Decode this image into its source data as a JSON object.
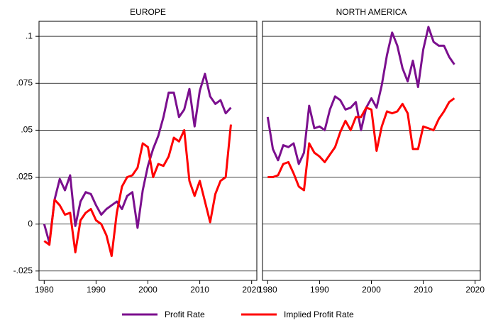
{
  "chart_data": [
    {
      "type": "line",
      "title": "EUROPE",
      "x": [
        1980,
        1981,
        1982,
        1983,
        1984,
        1985,
        1986,
        1987,
        1988,
        1989,
        1990,
        1991,
        1992,
        1993,
        1994,
        1995,
        1996,
        1997,
        1998,
        1999,
        2000,
        2001,
        2002,
        2003,
        2004,
        2005,
        2006,
        2007,
        2008,
        2009,
        2010,
        2011,
        2012,
        2013,
        2014,
        2015,
        2016
      ],
      "series": [
        {
          "name": "Profit Rate",
          "color": "#7b0f8e",
          "values": [
            0,
            -0.01,
            0.013,
            0.024,
            0.018,
            0.026,
            -0.001,
            0.012,
            0.017,
            0.016,
            0.01,
            0.005,
            0.008,
            0.01,
            0.012,
            0.008,
            0.015,
            0.017,
            -0.002,
            0.018,
            0.031,
            0.04,
            0.047,
            0.057,
            0.07,
            0.07,
            0.057,
            0.061,
            0.072,
            0.052,
            0.071,
            0.08,
            0.068,
            0.064,
            0.066,
            0.059,
            0.062
          ]
        },
        {
          "name": "Implied Profit Rate",
          "color": "#ff0000",
          "values": [
            -0.009,
            -0.011,
            0.013,
            0.01,
            0.005,
            0.006,
            -0.015,
            0.002,
            0.006,
            0.008,
            0.002,
            0,
            -0.006,
            -0.017,
            0.006,
            0.02,
            0.025,
            0.026,
            0.03,
            0.043,
            0.041,
            0.025,
            0.032,
            0.031,
            0.036,
            0.046,
            0.044,
            0.05,
            0.023,
            0.015,
            0.023,
            0.012,
            0.001,
            0.016,
            0.023,
            0.025,
            0.053
          ]
        }
      ],
      "xlim": [
        1979,
        2021
      ],
      "xticks": [
        1980,
        1990,
        2000,
        2010,
        2020
      ],
      "ylim": [
        -0.03,
        0.108
      ],
      "yticks": [
        {
          "value": -0.025,
          "label": "-.025"
        },
        0,
        {
          "value": 0.025,
          "label": ".025"
        },
        {
          "value": 0.05,
          "label": ".05"
        },
        {
          "value": 0.075,
          "label": ".075"
        },
        {
          "value": 0.1,
          "label": ".1"
        }
      ],
      "grid": true
    },
    {
      "type": "line",
      "title": "NORTH AMERICA",
      "x": [
        1980,
        1981,
        1982,
        1983,
        1984,
        1985,
        1986,
        1987,
        1988,
        1989,
        1990,
        1991,
        1992,
        1993,
        1994,
        1995,
        1996,
        1997,
        1998,
        1999,
        2000,
        2001,
        2002,
        2003,
        2004,
        2005,
        2006,
        2007,
        2008,
        2009,
        2010,
        2011,
        2012,
        2013,
        2014,
        2015,
        2016
      ],
      "series": [
        {
          "name": "Profit Rate",
          "color": "#7b0f8e",
          "values": [
            0.057,
            0.04,
            0.034,
            0.042,
            0.041,
            0.043,
            0.032,
            0.038,
            0.063,
            0.051,
            0.052,
            0.05,
            0.061,
            0.068,
            0.066,
            0.061,
            0.062,
            0.065,
            0.05,
            0.062,
            0.067,
            0.062,
            0.074,
            0.09,
            0.102,
            0.095,
            0.083,
            0.076,
            0.087,
            0.073,
            0.093,
            0.105,
            0.097,
            0.095,
            0.095,
            0.089,
            0.085
          ]
        },
        {
          "name": "Implied Profit Rate",
          "color": "#ff0000",
          "values": [
            0.025,
            0.025,
            0.026,
            0.032,
            0.033,
            0.027,
            0.02,
            0.018,
            0.043,
            0.038,
            0.036,
            0.033,
            0.037,
            0.041,
            0.049,
            0.055,
            0.05,
            0.057,
            0.057,
            0.062,
            0.061,
            0.039,
            0.052,
            0.06,
            0.059,
            0.06,
            0.064,
            0.059,
            0.04,
            0.04,
            0.052,
            0.051,
            0.05,
            0.056,
            0.06,
            0.065,
            0.067
          ]
        }
      ],
      "xlim": [
        1979,
        2021
      ],
      "xticks": [
        1980,
        1990,
        2000,
        2010,
        2020
      ],
      "ylim": [
        -0.03,
        0.108
      ],
      "yticks": [
        -0.025,
        0,
        0.025,
        0.05,
        0.075,
        0.1
      ],
      "grid": true
    }
  ]
}
